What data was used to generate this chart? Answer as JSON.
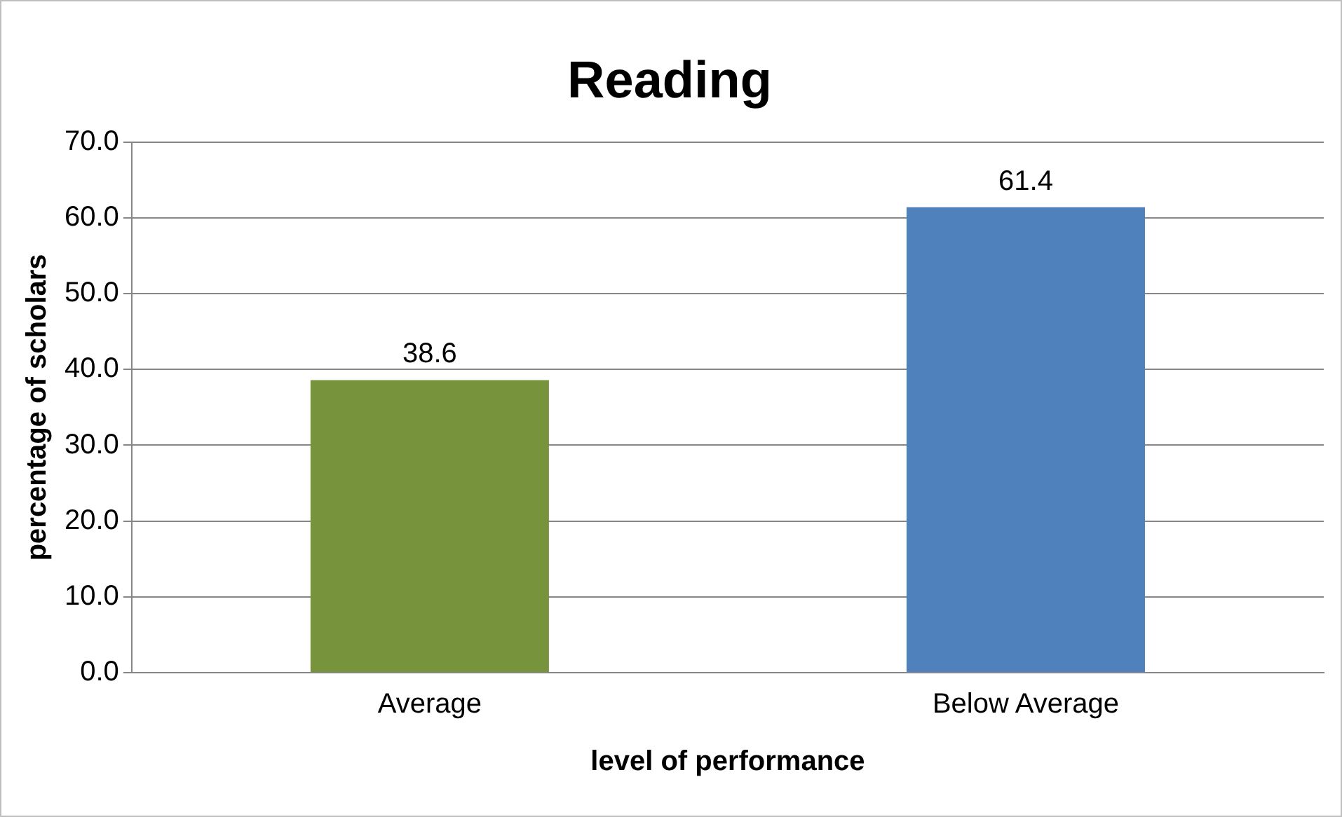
{
  "chart_data": {
    "type": "bar",
    "title": "Reading",
    "xlabel": "level of performance",
    "ylabel": "percentage of scholars",
    "categories": [
      "Average",
      "Below Average"
    ],
    "values": [
      38.6,
      61.4
    ],
    "colors": [
      "#77933c",
      "#4f81bd"
    ],
    "ylim": [
      0,
      70
    ],
    "yticks": [
      {
        "value": 0,
        "label": "0.0"
      },
      {
        "value": 10,
        "label": "10.0"
      },
      {
        "value": 20,
        "label": "20.0"
      },
      {
        "value": 30,
        "label": "30.0"
      },
      {
        "value": 40,
        "label": "40.0"
      },
      {
        "value": 50,
        "label": "50.0"
      },
      {
        "value": 60,
        "label": "60.0"
      },
      {
        "value": 70,
        "label": "70.0"
      }
    ],
    "grid": "y",
    "data_labels": true
  }
}
